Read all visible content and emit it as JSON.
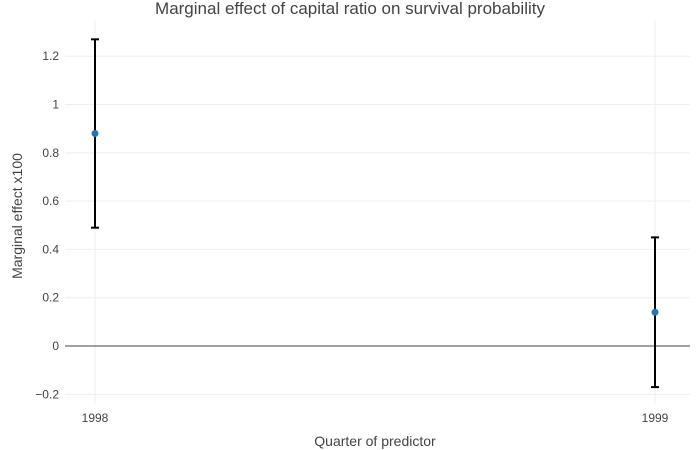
{
  "chart_data": {
    "type": "scatter",
    "title": "Marginal effect of capital ratio on survival probability",
    "xlabel": "Quarter of predictor",
    "ylabel": "Marginal effect x100",
    "x_categories": [
      "1998",
      "1999"
    ],
    "points": [
      {
        "x": "1998",
        "y": 0.88,
        "lower": 0.49,
        "upper": 1.27
      },
      {
        "x": "1999",
        "y": 0.14,
        "lower": -0.17,
        "upper": 0.45
      }
    ],
    "ylim": [
      -0.24,
      1.35
    ],
    "y_ticks": [
      -0.2,
      0,
      0.2,
      0.4,
      0.6,
      0.8,
      1,
      1.2
    ],
    "y_tick_labels": [
      "−0.2",
      "0",
      "0.2",
      "0.4",
      "0.6",
      "0.8",
      "1",
      "1.2"
    ],
    "grid": true,
    "zero_line": true,
    "legend": "none",
    "colors": {
      "point": "#1f77b4",
      "error_bar": "#000000",
      "grid": "#eeeeee",
      "zero_line": "#444444",
      "text": "#444444"
    }
  }
}
